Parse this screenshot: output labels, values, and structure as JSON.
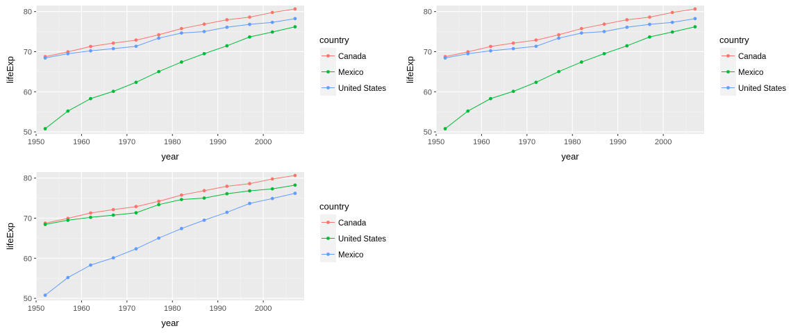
{
  "chart_data": [
    {
      "type": "line",
      "xlabel": "year",
      "ylabel": "lifeExp",
      "xlim": [
        1950,
        2009
      ],
      "ylim": [
        49.5,
        81.5
      ],
      "xticks": [
        1950,
        1960,
        1970,
        1980,
        1990,
        2000
      ],
      "yticks": [
        50,
        60,
        70,
        80
      ],
      "grid": true,
      "legend_title": "country",
      "legend_position": "right",
      "x": [
        1952,
        1957,
        1962,
        1967,
        1972,
        1977,
        1982,
        1987,
        1992,
        1997,
        2002,
        2007
      ],
      "series": [
        {
          "name": "Canada",
          "color": "#F8766D",
          "values": [
            68.75,
            69.96,
            71.3,
            72.13,
            72.88,
            74.21,
            75.76,
            76.86,
            77.95,
            78.61,
            79.77,
            80.65
          ]
        },
        {
          "name": "Mexico",
          "color": "#00BA38",
          "values": [
            50.79,
            55.19,
            58.3,
            60.11,
            62.36,
            65.03,
            67.41,
            69.5,
            71.46,
            73.67,
            74.9,
            76.2
          ]
        },
        {
          "name": "United States",
          "color": "#619CFF",
          "values": [
            68.44,
            69.49,
            70.21,
            70.76,
            71.34,
            73.38,
            74.65,
            75.02,
            76.09,
            76.81,
            77.31,
            78.24
          ]
        }
      ]
    },
    {
      "type": "line",
      "xlabel": "year",
      "ylabel": "lifeExp",
      "xlim": [
        1950,
        2009
      ],
      "ylim": [
        49.5,
        81.5
      ],
      "xticks": [
        1950,
        1960,
        1970,
        1980,
        1990,
        2000
      ],
      "yticks": [
        50,
        60,
        70,
        80
      ],
      "grid": true,
      "legend_title": "country",
      "legend_position": "right",
      "x": [
        1952,
        1957,
        1962,
        1967,
        1972,
        1977,
        1982,
        1987,
        1992,
        1997,
        2002,
        2007
      ],
      "series": [
        {
          "name": "Canada",
          "color": "#F8766D",
          "values": [
            68.75,
            69.96,
            71.3,
            72.13,
            72.88,
            74.21,
            75.76,
            76.86,
            77.95,
            78.61,
            79.77,
            80.65
          ]
        },
        {
          "name": "Mexico",
          "color": "#00BA38",
          "values": [
            50.79,
            55.19,
            58.3,
            60.11,
            62.36,
            65.03,
            67.41,
            69.5,
            71.46,
            73.67,
            74.9,
            76.2
          ]
        },
        {
          "name": "United States",
          "color": "#619CFF",
          "values": [
            68.44,
            69.49,
            70.21,
            70.76,
            71.34,
            73.38,
            74.65,
            75.02,
            76.09,
            76.81,
            77.31,
            78.24
          ]
        }
      ]
    },
    {
      "type": "line",
      "xlabel": "year",
      "ylabel": "lifeExp",
      "xlim": [
        1950,
        2009
      ],
      "ylim": [
        49.5,
        81.5
      ],
      "xticks": [
        1950,
        1960,
        1970,
        1980,
        1990,
        2000
      ],
      "yticks": [
        50,
        60,
        70,
        80
      ],
      "grid": true,
      "legend_title": "country",
      "legend_position": "right",
      "x": [
        1952,
        1957,
        1962,
        1967,
        1972,
        1977,
        1982,
        1987,
        1992,
        1997,
        2002,
        2007
      ],
      "series": [
        {
          "name": "Canada",
          "color": "#F8766D",
          "values": [
            68.75,
            69.96,
            71.3,
            72.13,
            72.88,
            74.21,
            75.76,
            76.86,
            77.95,
            78.61,
            79.77,
            80.65
          ]
        },
        {
          "name": "United States",
          "color": "#00BA38",
          "values": [
            68.44,
            69.49,
            70.21,
            70.76,
            71.34,
            73.38,
            74.65,
            75.02,
            76.09,
            76.81,
            77.31,
            78.24
          ]
        },
        {
          "name": "Mexico",
          "color": "#619CFF",
          "values": [
            50.79,
            55.19,
            58.3,
            60.11,
            62.36,
            65.03,
            67.41,
            69.5,
            71.46,
            73.67,
            74.9,
            76.2
          ]
        }
      ]
    }
  ]
}
